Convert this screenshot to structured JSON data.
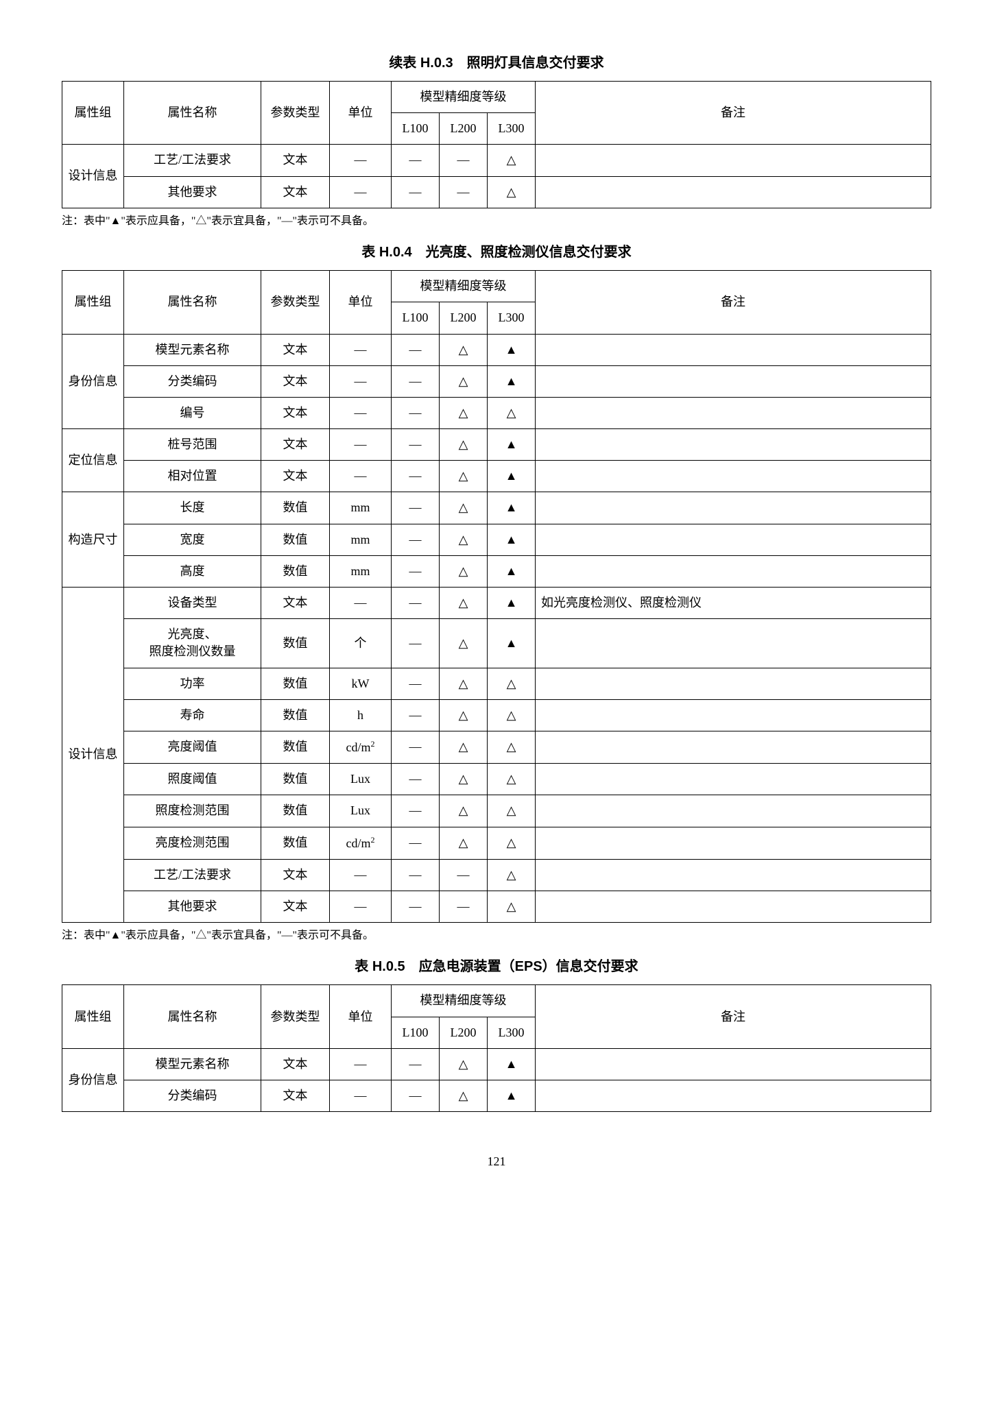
{
  "pageNumber": "121",
  "footnote": "注：表中\"▲\"表示应具备，\"△\"表示宜具备，\"—\"表示可不具备。",
  "symbols": {
    "solid": "▲",
    "hollow": "△",
    "dash": "—"
  },
  "headers": {
    "group": "属性组",
    "name": "属性名称",
    "ptype": "参数类型",
    "unit": "单位",
    "levelHeader": "模型精细度等级",
    "L100": "L100",
    "L200": "L200",
    "L300": "L300",
    "note": "备注"
  },
  "table1": {
    "title": "续表 H.0.3　照明灯具信息交付要求",
    "group": "设计信息",
    "rows": [
      {
        "name": "工艺/工法要求",
        "ptype": "文本",
        "unit": "—",
        "L100": "—",
        "L200": "—",
        "L300": "△",
        "note": ""
      },
      {
        "name": "其他要求",
        "ptype": "文本",
        "unit": "—",
        "L100": "—",
        "L200": "—",
        "L300": "△",
        "note": ""
      }
    ]
  },
  "table2": {
    "title": "表 H.0.4　光亮度、照度检测仪信息交付要求",
    "groups": [
      {
        "label": "身份信息",
        "span": 3
      },
      {
        "label": "定位信息",
        "span": 2
      },
      {
        "label": "构造尺寸",
        "span": 3
      },
      {
        "label": "设计信息",
        "span": 10
      }
    ],
    "rows": [
      {
        "name": "模型元素名称",
        "ptype": "文本",
        "unit": "—",
        "L100": "—",
        "L200": "△",
        "L300": "▲",
        "note": ""
      },
      {
        "name": "分类编码",
        "ptype": "文本",
        "unit": "—",
        "L100": "—",
        "L200": "△",
        "L300": "▲",
        "note": ""
      },
      {
        "name": "编号",
        "ptype": "文本",
        "unit": "—",
        "L100": "—",
        "L200": "△",
        "L300": "△",
        "note": ""
      },
      {
        "name": "桩号范围",
        "ptype": "文本",
        "unit": "—",
        "L100": "—",
        "L200": "△",
        "L300": "▲",
        "note": ""
      },
      {
        "name": "相对位置",
        "ptype": "文本",
        "unit": "—",
        "L100": "—",
        "L200": "△",
        "L300": "▲",
        "note": ""
      },
      {
        "name": "长度",
        "ptype": "数值",
        "unit": "mm",
        "L100": "—",
        "L200": "△",
        "L300": "▲",
        "note": ""
      },
      {
        "name": "宽度",
        "ptype": "数值",
        "unit": "mm",
        "L100": "—",
        "L200": "△",
        "L300": "▲",
        "note": ""
      },
      {
        "name": "高度",
        "ptype": "数值",
        "unit": "mm",
        "L100": "—",
        "L200": "△",
        "L300": "▲",
        "note": ""
      },
      {
        "name": "设备类型",
        "ptype": "文本",
        "unit": "—",
        "L100": "—",
        "L200": "△",
        "L300": "▲",
        "note": "如光亮度检测仪、照度检测仪"
      },
      {
        "name": "光亮度、\n照度检测仪数量",
        "ptype": "数值",
        "unit": "个",
        "L100": "—",
        "L200": "△",
        "L300": "▲",
        "note": ""
      },
      {
        "name": "功率",
        "ptype": "数值",
        "unit": "kW",
        "L100": "—",
        "L200": "△",
        "L300": "△",
        "note": ""
      },
      {
        "name": "寿命",
        "ptype": "数值",
        "unit": "h",
        "L100": "—",
        "L200": "△",
        "L300": "△",
        "note": ""
      },
      {
        "name": "亮度阈值",
        "ptype": "数值",
        "unit": "cd/m²",
        "L100": "—",
        "L200": "△",
        "L300": "△",
        "note": ""
      },
      {
        "name": "照度阈值",
        "ptype": "数值",
        "unit": "Lux",
        "L100": "—",
        "L200": "△",
        "L300": "△",
        "note": ""
      },
      {
        "name": "照度检测范围",
        "ptype": "数值",
        "unit": "Lux",
        "L100": "—",
        "L200": "△",
        "L300": "△",
        "note": ""
      },
      {
        "name": "亮度检测范围",
        "ptype": "数值",
        "unit": "cd/m²",
        "L100": "—",
        "L200": "△",
        "L300": "△",
        "note": ""
      },
      {
        "name": "工艺/工法要求",
        "ptype": "文本",
        "unit": "—",
        "L100": "—",
        "L200": "—",
        "L300": "△",
        "note": ""
      },
      {
        "name": "其他要求",
        "ptype": "文本",
        "unit": "—",
        "L100": "—",
        "L200": "—",
        "L300": "△",
        "note": ""
      }
    ]
  },
  "table3": {
    "title": "表 H.0.5　应急电源装置（EPS）信息交付要求",
    "group": "身份信息",
    "rows": [
      {
        "name": "模型元素名称",
        "ptype": "文本",
        "unit": "—",
        "L100": "—",
        "L200": "△",
        "L300": "▲",
        "note": ""
      },
      {
        "name": "分类编码",
        "ptype": "文本",
        "unit": "—",
        "L100": "—",
        "L200": "△",
        "L300": "▲",
        "note": ""
      }
    ]
  }
}
